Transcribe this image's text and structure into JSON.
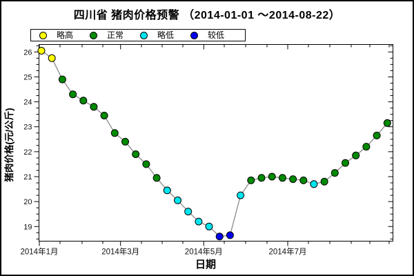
{
  "chart_data": {
    "type": "line",
    "title": "四川省 猪肉价格预警 （2014-01-01 ～2014-08-22）",
    "xlabel": "日期",
    "ylabel": "猪肉价格(元/公斤)",
    "x_tick_labels": [
      "2014年1月",
      "2014年3月",
      "2014年5月",
      "2014年7月"
    ],
    "y_tick_labels": [
      19,
      20,
      21,
      22,
      23,
      24,
      25,
      26
    ],
    "ylim": [
      18.4,
      26.3
    ],
    "grid": false,
    "legend_position": "top-left",
    "legend": [
      {
        "label": "略高",
        "color": "#ffff00"
      },
      {
        "label": "正常",
        "color": "#008a00"
      },
      {
        "label": "略低",
        "color": "#00e5ee"
      },
      {
        "label": "较低",
        "color": "#0000ee"
      }
    ],
    "line_color": "#8a8a8a",
    "marker_edge_color": "#000000",
    "series": [
      {
        "name": "猪肉价格",
        "dates": [
          "2014-01-03",
          "2014-01-10",
          "2014-01-17",
          "2014-01-24",
          "2014-01-31",
          "2014-02-07",
          "2014-02-14",
          "2014-02-21",
          "2014-02-28",
          "2014-03-07",
          "2014-03-14",
          "2014-03-21",
          "2014-03-28",
          "2014-04-04",
          "2014-04-11",
          "2014-04-18",
          "2014-04-25",
          "2014-05-02",
          "2014-05-09",
          "2014-05-16",
          "2014-05-23",
          "2014-05-30",
          "2014-06-06",
          "2014-06-13",
          "2014-06-20",
          "2014-06-27",
          "2014-07-04",
          "2014-07-11",
          "2014-07-18",
          "2014-07-25",
          "2014-08-01",
          "2014-08-08",
          "2014-08-15",
          "2014-08-22"
        ],
        "values": [
          26.05,
          25.75,
          24.9,
          24.3,
          24.05,
          23.8,
          23.45,
          22.75,
          22.4,
          21.9,
          21.5,
          20.95,
          20.45,
          20.05,
          19.6,
          19.2,
          19.0,
          18.6,
          18.65,
          20.25,
          20.85,
          20.95,
          21.0,
          20.95,
          20.9,
          20.85,
          20.7,
          20.8,
          21.15,
          21.55,
          21.85,
          22.2,
          22.65,
          23.15
        ],
        "status": [
          "略高",
          "略高",
          "正常",
          "正常",
          "正常",
          "正常",
          "正常",
          "正常",
          "正常",
          "正常",
          "正常",
          "正常",
          "略低",
          "略低",
          "略低",
          "略低",
          "略低",
          "较低",
          "较低",
          "略低",
          "正常",
          "正常",
          "正常",
          "正常",
          "正常",
          "正常",
          "略低",
          "正常",
          "正常",
          "正常",
          "正常",
          "正常",
          "正常",
          "正常"
        ]
      }
    ]
  }
}
